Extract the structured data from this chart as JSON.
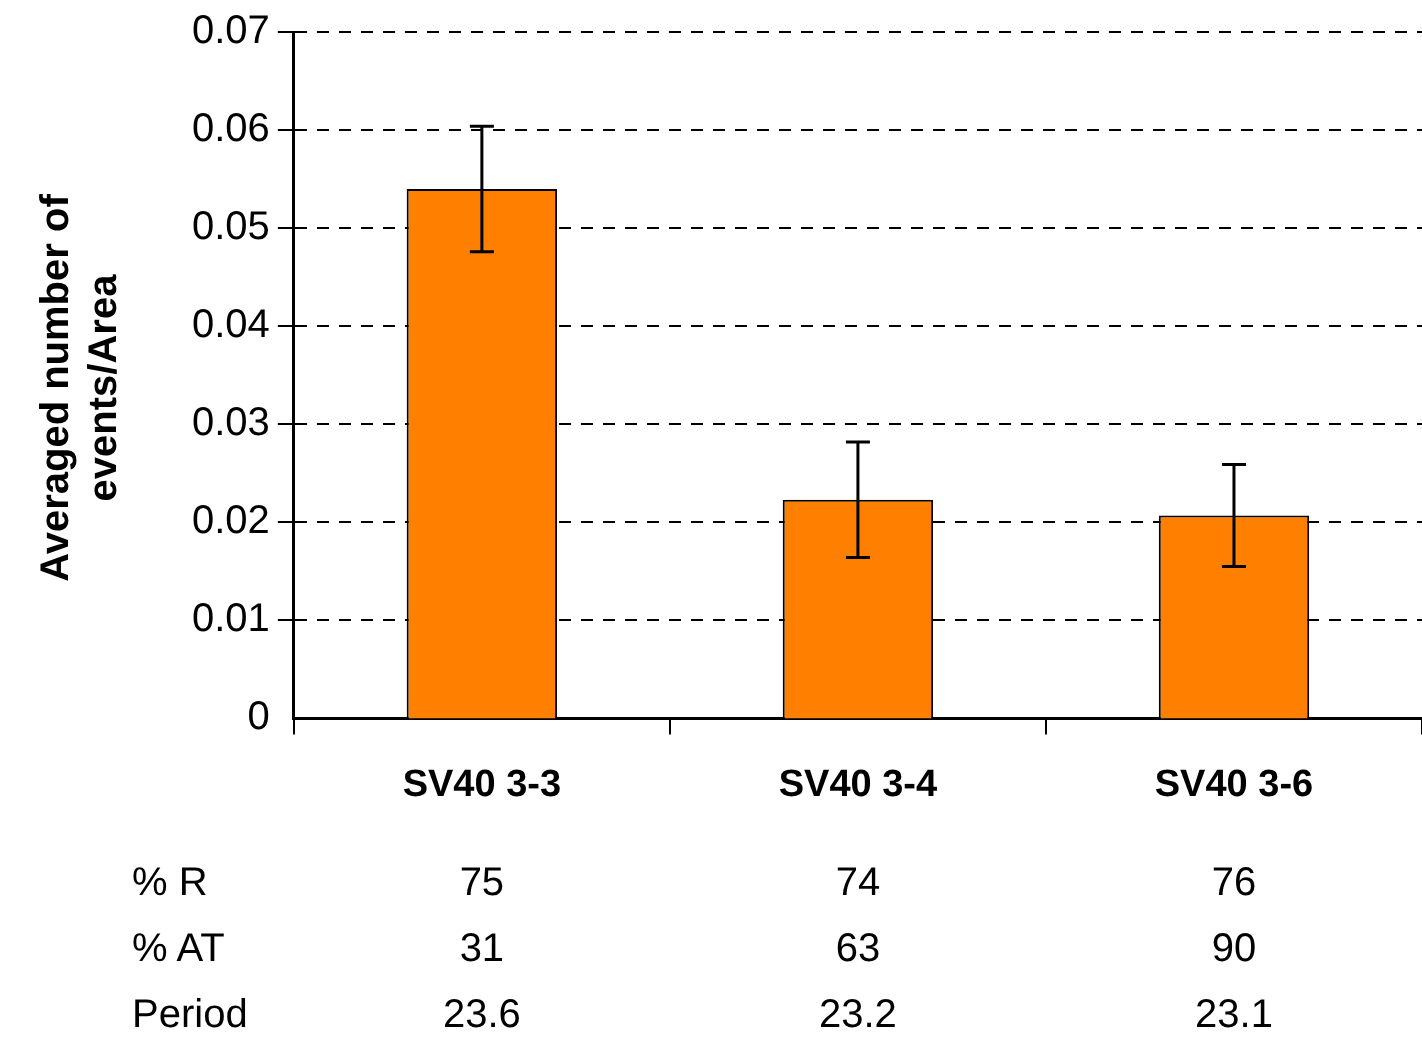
{
  "chart_data": {
    "type": "bar",
    "ylabel": "Averaged number of events/Area",
    "categories": [
      "SV40 3-3",
      "SV40 3-4",
      "SV40 3-6"
    ],
    "values": [
      0.054,
      0.0223,
      0.0207
    ],
    "errors": [
      0.0064,
      0.0059,
      0.0052
    ],
    "color": "#ff7f00",
    "ylim": [
      0,
      0.07
    ],
    "yticks": [
      0,
      0.01,
      0.02,
      0.03,
      0.04,
      0.05,
      0.06,
      0.07
    ],
    "grid": "y",
    "legend": false,
    "annotations": [
      "% R",
      "75",
      "74",
      "76",
      "% AT",
      "31",
      "63",
      "90",
      "Period",
      "23.6",
      "23.2",
      "23.1"
    ]
  }
}
